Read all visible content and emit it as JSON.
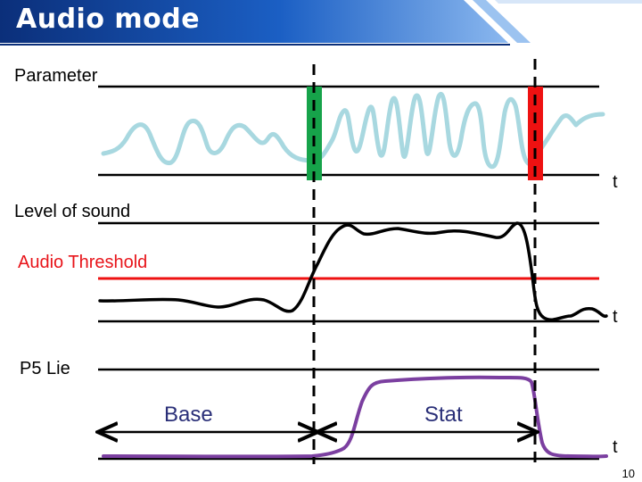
{
  "slide": {
    "title": "Audio mode",
    "page_number": "10"
  },
  "panels": {
    "parameter": {
      "label": "Parameter",
      "axis_label": "t"
    },
    "sound": {
      "label": "Level of sound",
      "threshold_label": "Audio Threshold",
      "axis_label": "t"
    },
    "lie": {
      "label": "P5 Lie",
      "axis_label": "t"
    }
  },
  "intervals": [
    {
      "label": "Base"
    },
    {
      "label": "Stat"
    }
  ],
  "colors": {
    "banner_dark": "#0f3a8c",
    "banner_light": "#6fa2e6",
    "parameter_wave": "#a8d8e0",
    "start_marker": "#16a34a",
    "end_marker": "#ee1111",
    "threshold": "#ee1111",
    "sound_curve": "#000000",
    "lie_curve": "#7b3fa0",
    "text_red": "#e8141a",
    "interval_text": "#2a2f78"
  }
}
